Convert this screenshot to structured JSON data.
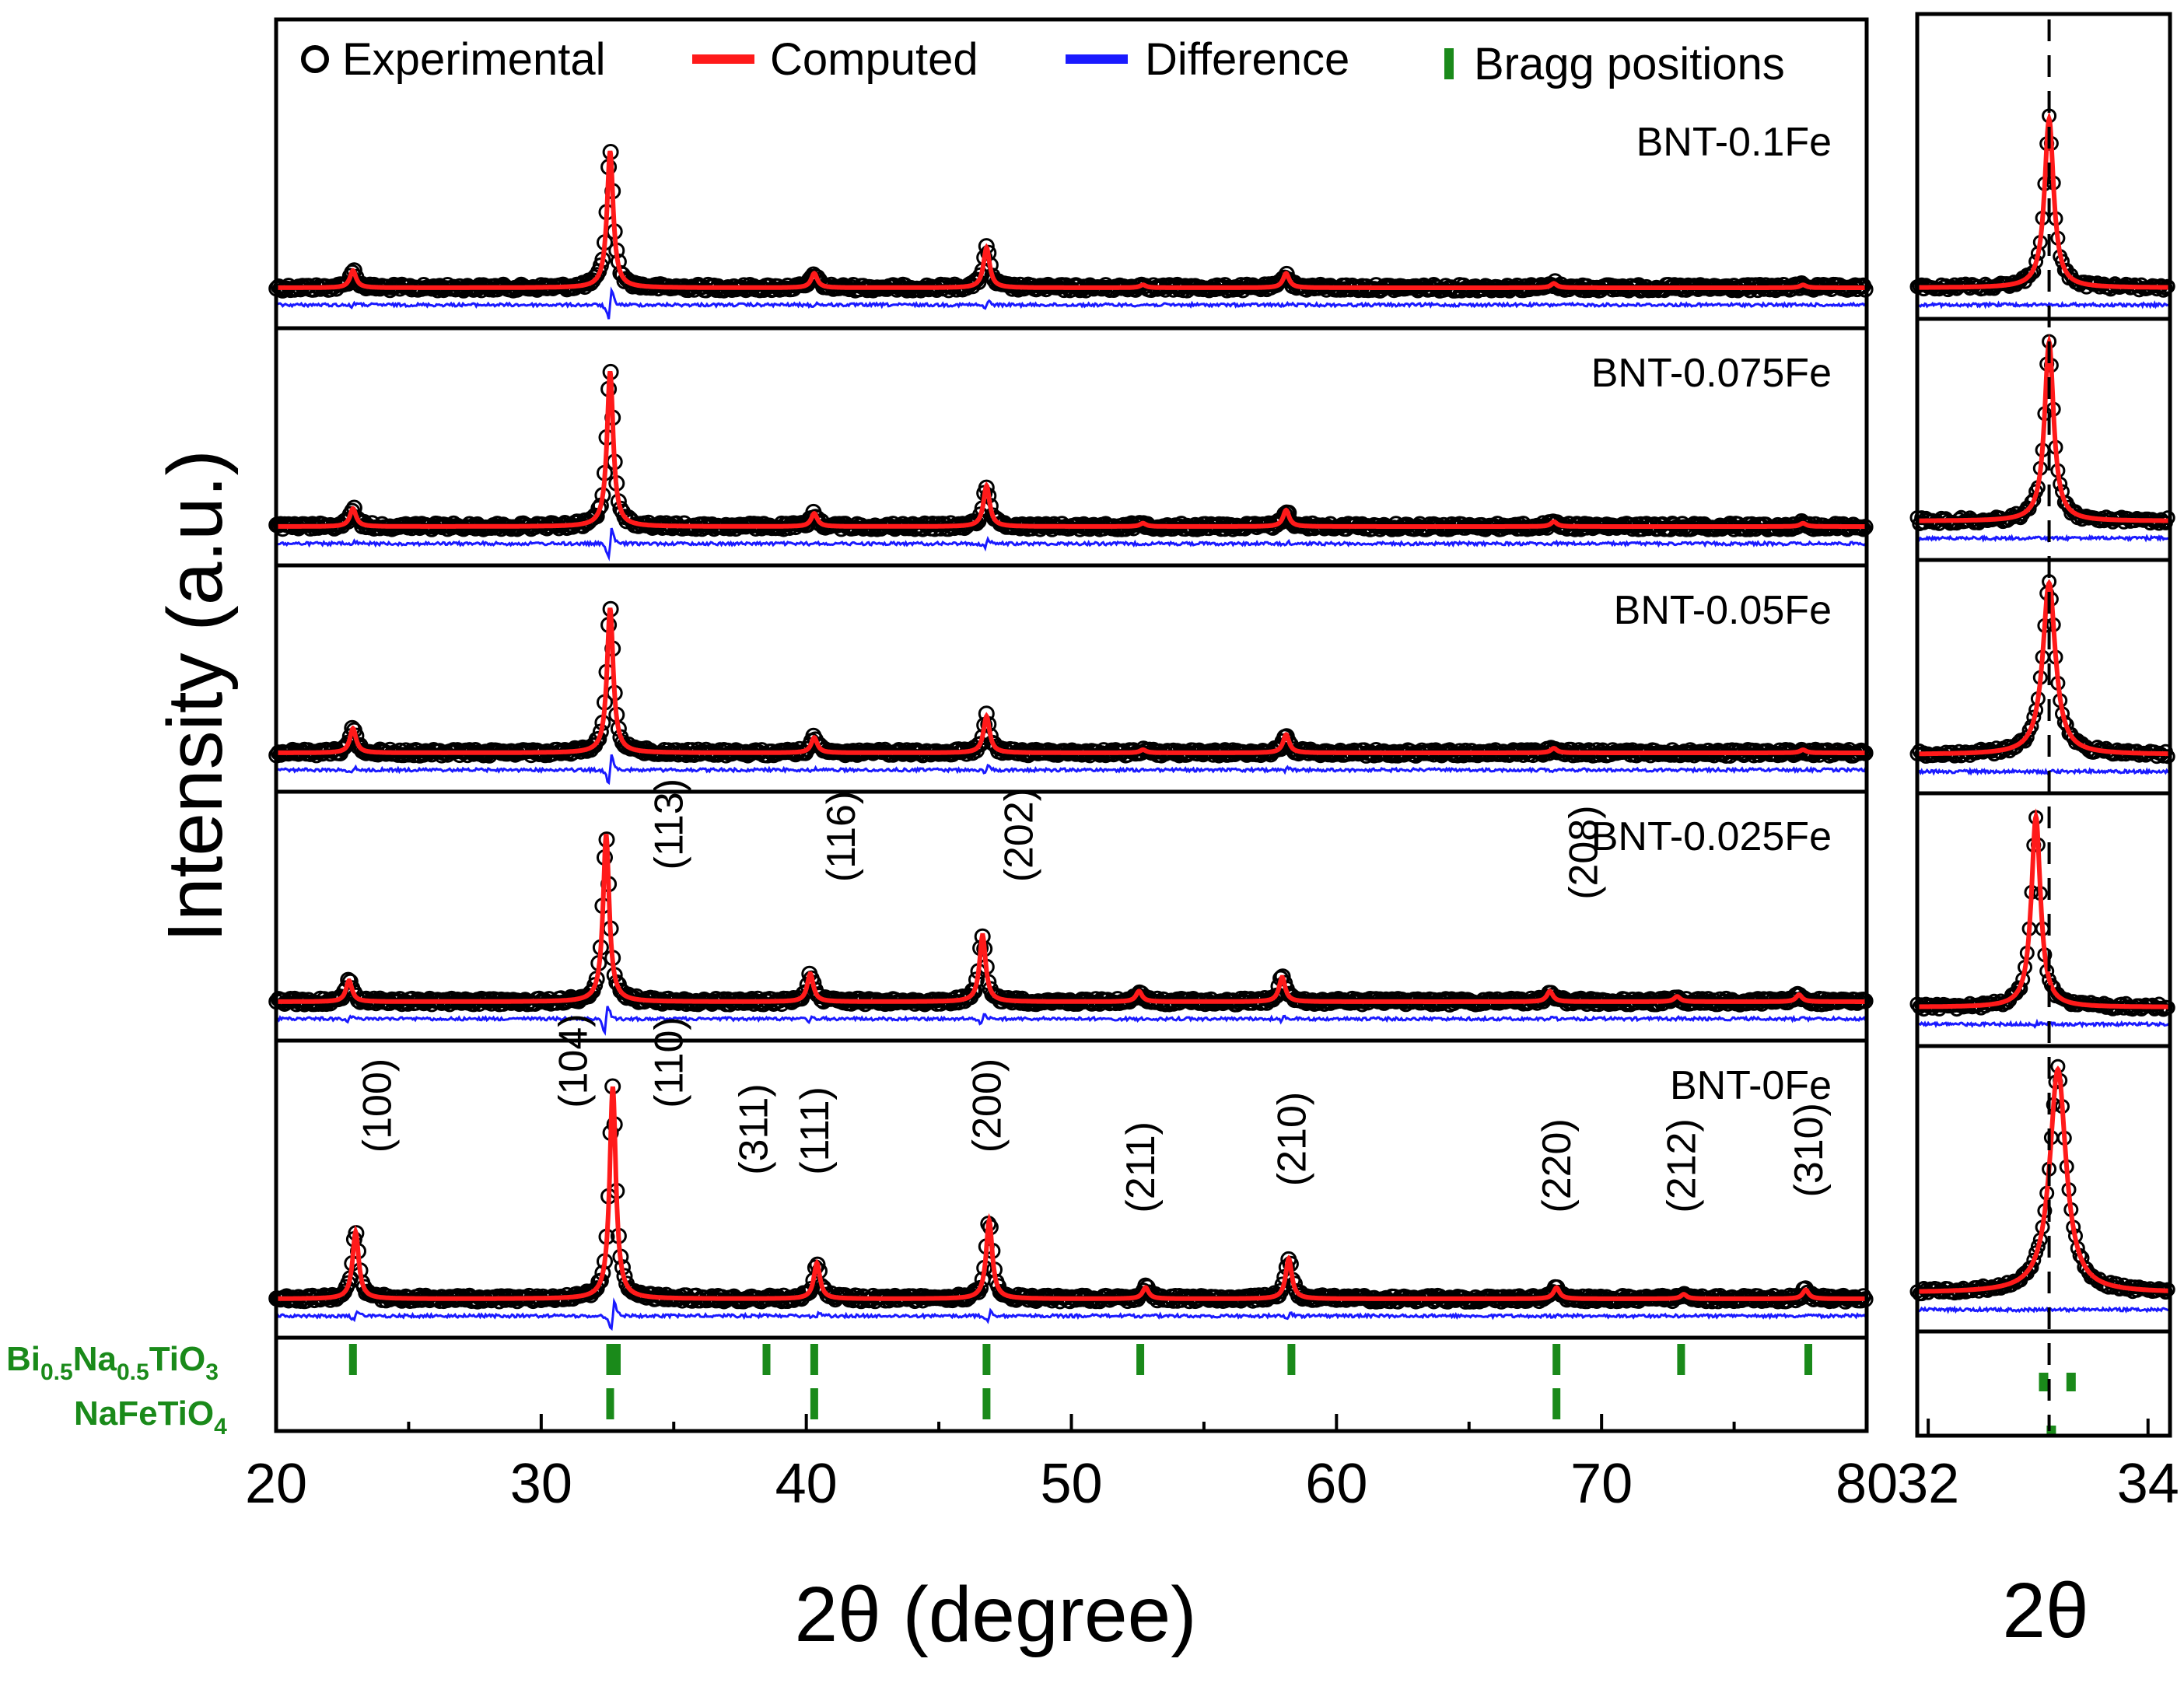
{
  "chart_data": {
    "type": "line",
    "title": "",
    "xlabel": "2θ (degree)",
    "ylabel": "Intensity (a.u.)",
    "xlim": [
      20,
      80
    ],
    "x_ticks": [
      20,
      30,
      40,
      50,
      60,
      70,
      80
    ],
    "legend": {
      "placement": "top",
      "entries": [
        {
          "label": "Experimental",
          "color": "#000000",
          "marker": "circle"
        },
        {
          "label": "Computed",
          "color": "#ff1a1a",
          "marker": "line"
        },
        {
          "label": "Difference",
          "color": "#1a1aff",
          "marker": "line"
        },
        {
          "label": "Bragg positions",
          "color": "#1a8a1a",
          "marker": "tick"
        }
      ]
    },
    "samples": [
      {
        "name": "BNT-0.1Fe",
        "shift": 0.0,
        "peaks": [
          [
            22.9,
            0.12
          ],
          [
            32.6,
            0.95
          ],
          [
            40.3,
            0.1
          ],
          [
            46.8,
            0.28
          ],
          [
            52.7,
            0.02
          ],
          [
            58.1,
            0.1
          ],
          [
            68.2,
            0.03
          ],
          [
            77.6,
            0.02
          ]
        ]
      },
      {
        "name": "BNT-0.075Fe",
        "shift": 0.0,
        "peaks": [
          [
            22.9,
            0.11
          ],
          [
            32.6,
            0.95
          ],
          [
            40.3,
            0.08
          ],
          [
            46.8,
            0.25
          ],
          [
            52.7,
            0.02
          ],
          [
            58.1,
            0.1
          ],
          [
            68.2,
            0.03
          ],
          [
            77.6,
            0.02
          ]
        ]
      },
      {
        "name": "BNT-0.05Fe",
        "shift": 0.0,
        "peaks": [
          [
            22.9,
            0.16
          ],
          [
            32.6,
            0.95
          ],
          [
            40.3,
            0.1
          ],
          [
            46.8,
            0.24
          ],
          [
            52.7,
            0.02
          ],
          [
            58.1,
            0.12
          ],
          [
            68.2,
            0.03
          ],
          [
            77.6,
            0.02
          ]
        ]
      },
      {
        "name": "BNT-0.025Fe",
        "shift": -0.15,
        "peaks": [
          [
            22.9,
            0.12
          ],
          [
            32.6,
            0.95
          ],
          [
            40.3,
            0.16
          ],
          [
            46.8,
            0.38
          ],
          [
            52.7,
            0.06
          ],
          [
            58.1,
            0.14
          ],
          [
            68.2,
            0.06
          ],
          [
            73.0,
            0.03
          ],
          [
            77.6,
            0.04
          ]
        ]
      },
      {
        "name": "BNT-0Fe",
        "shift": 0.1,
        "peaks": [
          [
            22.9,
            0.3
          ],
          [
            32.6,
            0.95
          ],
          [
            40.3,
            0.16
          ],
          [
            46.8,
            0.35
          ],
          [
            52.7,
            0.05
          ],
          [
            58.1,
            0.18
          ],
          [
            68.2,
            0.05
          ],
          [
            73.0,
            0.02
          ],
          [
            77.6,
            0.04
          ]
        ]
      }
    ],
    "miller_labels": {
      "BNT-0.025Fe": [
        {
          "text": "(113)",
          "x": 34.8,
          "level": 0.62
        },
        {
          "text": "(116)",
          "x": 41.3,
          "level": 0.55
        },
        {
          "text": "(202)",
          "x": 48.0,
          "level": 0.55
        },
        {
          "text": "(208)",
          "x": 69.3,
          "level": 0.45
        }
      ],
      "BNT-0Fe": [
        {
          "text": "(100)",
          "x": 23.8,
          "level": 0.55
        },
        {
          "text": "(104)",
          "x": 31.2,
          "level": 0.75
        },
        {
          "text": "(110)",
          "x": 34.8,
          "level": 0.75
        },
        {
          "text": "(311)",
          "x": 38.0,
          "level": 0.45
        },
        {
          "text": "(111)",
          "x": 40.3,
          "level": 0.45
        },
        {
          "text": "(200)",
          "x": 46.8,
          "level": 0.55
        },
        {
          "text": "(211)",
          "x": 52.6,
          "level": 0.28
        },
        {
          "text": "(210)",
          "x": 58.3,
          "level": 0.4
        },
        {
          "text": "(220)",
          "x": 68.3,
          "level": 0.28
        },
        {
          "text": "(212)",
          "x": 73.0,
          "level": 0.28
        },
        {
          "text": "(310)",
          "x": 77.8,
          "level": 0.35
        }
      ]
    },
    "bragg_phases": [
      {
        "name_main": "Bi",
        "sub1": "0.5",
        "mid": "Na",
        "sub2": "0.5",
        "tail": "TiO",
        "sub3": "3",
        "positions": [
          22.9,
          32.6,
          32.85,
          38.5,
          40.3,
          46.8,
          52.6,
          58.3,
          68.3,
          73.0,
          77.8
        ]
      },
      {
        "name_main": "NaFeTiO",
        "sub1": "4",
        "mid": "",
        "sub2": "",
        "tail": "",
        "sub3": "",
        "positions": [
          32.6,
          40.3,
          46.8,
          68.3
        ]
      }
    ],
    "inset": {
      "xlabel": "2θ",
      "xlim": [
        31.9,
        34.2
      ],
      "x_ticks": [
        32,
        34
      ],
      "reference_line_x": 33.1,
      "peak_centers": [
        33.1,
        33.1,
        33.1,
        32.98,
        33.18
      ],
      "bragg_ticks_row1": [
        33.05,
        33.3
      ],
      "bragg_ticks_row2": [
        33.12
      ]
    }
  }
}
